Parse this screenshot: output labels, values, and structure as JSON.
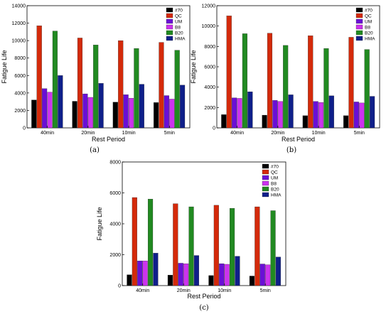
{
  "colors": {
    "#70": "#000000",
    "QC": "#d42a0a",
    "UM": "#6a0fd6",
    "B8": "#cc33ee",
    "B20": "#218a21",
    "HMA": "#0f1f8a"
  },
  "chart_data": [
    {
      "type": "bar",
      "panel_label": "(a)",
      "categories": [
        "40min",
        "20min",
        "10min",
        "5min"
      ],
      "xlabel": "Rest Period",
      "ylabel": "Fatigue Life",
      "ylim": [
        0,
        14000
      ],
      "yticks": [
        0,
        2000,
        4000,
        6000,
        8000,
        10000,
        12000,
        14000
      ],
      "legend_position": "top-right",
      "series": [
        {
          "name": "#70",
          "values": [
            3200,
            3050,
            2950,
            2900
          ]
        },
        {
          "name": "QC",
          "values": [
            11700,
            10300,
            10000,
            9800
          ]
        },
        {
          "name": "UM",
          "values": [
            4500,
            3900,
            3800,
            3700
          ]
        },
        {
          "name": "B8",
          "values": [
            4100,
            3500,
            3400,
            3300
          ]
        },
        {
          "name": "B20",
          "values": [
            11100,
            9500,
            9100,
            8900
          ]
        },
        {
          "name": "HMA",
          "values": [
            6000,
            5100,
            5000,
            4900
          ]
        }
      ]
    },
    {
      "type": "bar",
      "panel_label": "(b)",
      "categories": [
        "40min",
        "20min",
        "10min",
        "5min"
      ],
      "xlabel": "Rest Period",
      "ylabel": "Fatigue Life",
      "ylim": [
        0,
        12000
      ],
      "yticks": [
        0,
        2000,
        4000,
        6000,
        8000,
        10000,
        12000
      ],
      "legend_position": "top-right",
      "series": [
        {
          "name": "#70",
          "values": [
            1300,
            1250,
            1200,
            1200
          ]
        },
        {
          "name": "QC",
          "values": [
            11000,
            9300,
            9050,
            8900
          ]
        },
        {
          "name": "UM",
          "values": [
            2950,
            2700,
            2600,
            2550
          ]
        },
        {
          "name": "B8",
          "values": [
            2900,
            2600,
            2500,
            2450
          ]
        },
        {
          "name": "B20",
          "values": [
            9250,
            8100,
            7800,
            7700
          ]
        },
        {
          "name": "HMA",
          "values": [
            3550,
            3250,
            3150,
            3100
          ]
        }
      ]
    },
    {
      "type": "bar",
      "panel_label": "(c)",
      "categories": [
        "40min",
        "20min",
        "10min",
        "5min"
      ],
      "xlabel": "Rest Period",
      "ylabel": "Fatigue Life",
      "ylim": [
        0,
        8000
      ],
      "yticks": [
        0,
        2000,
        4000,
        6000,
        8000
      ],
      "legend_position": "top-right",
      "series": [
        {
          "name": "#70",
          "values": [
            700,
            680,
            650,
            620
          ]
        },
        {
          "name": "QC",
          "values": [
            5700,
            5300,
            5200,
            5100
          ]
        },
        {
          "name": "UM",
          "values": [
            1600,
            1450,
            1420,
            1400
          ]
        },
        {
          "name": "B8",
          "values": [
            1600,
            1420,
            1380,
            1350
          ]
        },
        {
          "name": "B20",
          "values": [
            5600,
            5100,
            5000,
            4850
          ]
        },
        {
          "name": "HMA",
          "values": [
            2100,
            1950,
            1900,
            1850
          ]
        }
      ]
    }
  ]
}
